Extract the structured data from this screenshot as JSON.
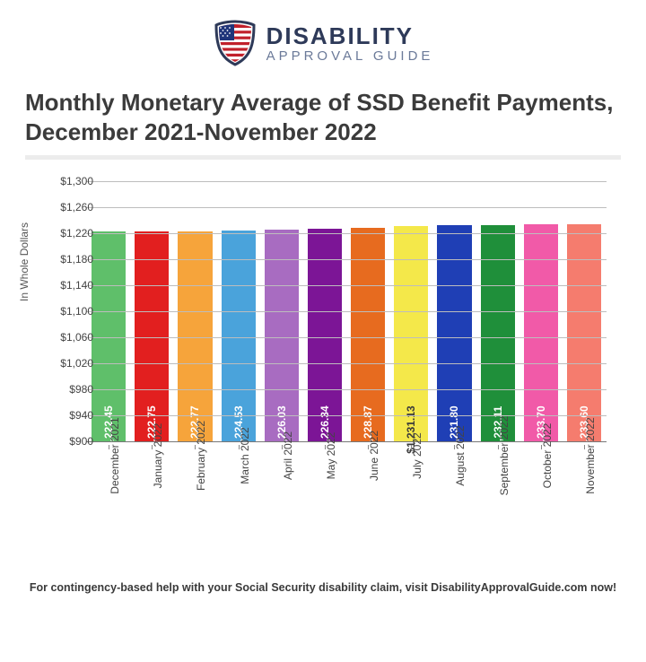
{
  "logo": {
    "line1": "DISABILITY",
    "line2": "APPROVAL GUIDE",
    "shield_border": "#2e3a59",
    "flag_red": "#c1202b",
    "flag_white": "#ffffff",
    "flag_blue": "#1f357a"
  },
  "title": "Monthly Monetary Average of SSD Benefit Payments, December 2021-November 2022",
  "footer": "For contingency-based help with your Social Security disability claim, visit DisabilityApprovalGuide.com now!",
  "chart": {
    "type": "bar",
    "ylabel": "In Whole Dollars",
    "ylim": [
      900,
      1300
    ],
    "ytick_step": 40,
    "yticks": [
      900,
      940,
      980,
      1020,
      1060,
      1100,
      1140,
      1180,
      1220,
      1260,
      1300
    ],
    "ytick_labels": [
      "$900",
      "$940",
      "$980",
      "$1,020",
      "$1,060",
      "$1,100",
      "$1,140",
      "$1,180",
      "$1,220",
      "$1,260",
      "$1,300"
    ],
    "grid_color": "#bdbdbd",
    "background_color": "#ffffff",
    "axis_fontsize": 12,
    "value_label_fontsize": 12,
    "value_label_color_light": "#ffffff",
    "value_label_color_dark": "#3a3a3a",
    "categories": [
      "December 2021",
      "January 2022",
      "February 2022",
      "March 2022",
      "April 2022",
      "May 2022",
      "June 2022",
      "July 2022",
      "August 2022",
      "September 2022",
      "October 2022",
      "November 2022"
    ],
    "values": [
      1222.45,
      1222.75,
      1222.77,
      1224.53,
      1226.03,
      1226.34,
      1228.87,
      1231.13,
      1231.8,
      1232.11,
      1233.7,
      1233.6
    ],
    "value_labels": [
      "$1,222.45",
      "$1,222.75",
      "$1,222.77",
      "$1,224.53",
      "$1,226.03",
      "$1,226.34",
      "$1,228.87",
      "$1,231.13",
      "$1,231.80",
      "$1,232.11",
      "$1,233.70",
      "$1,233.60"
    ],
    "bar_colors": [
      "#5fbf6a",
      "#e21f1f",
      "#f6a43b",
      "#4aa3db",
      "#a86cc1",
      "#7c1596",
      "#e76b1f",
      "#f4e84a",
      "#1f3fb5",
      "#1f8f3a",
      "#f15aa8",
      "#f57c6e"
    ],
    "label_text_dark_on": [
      7
    ]
  }
}
